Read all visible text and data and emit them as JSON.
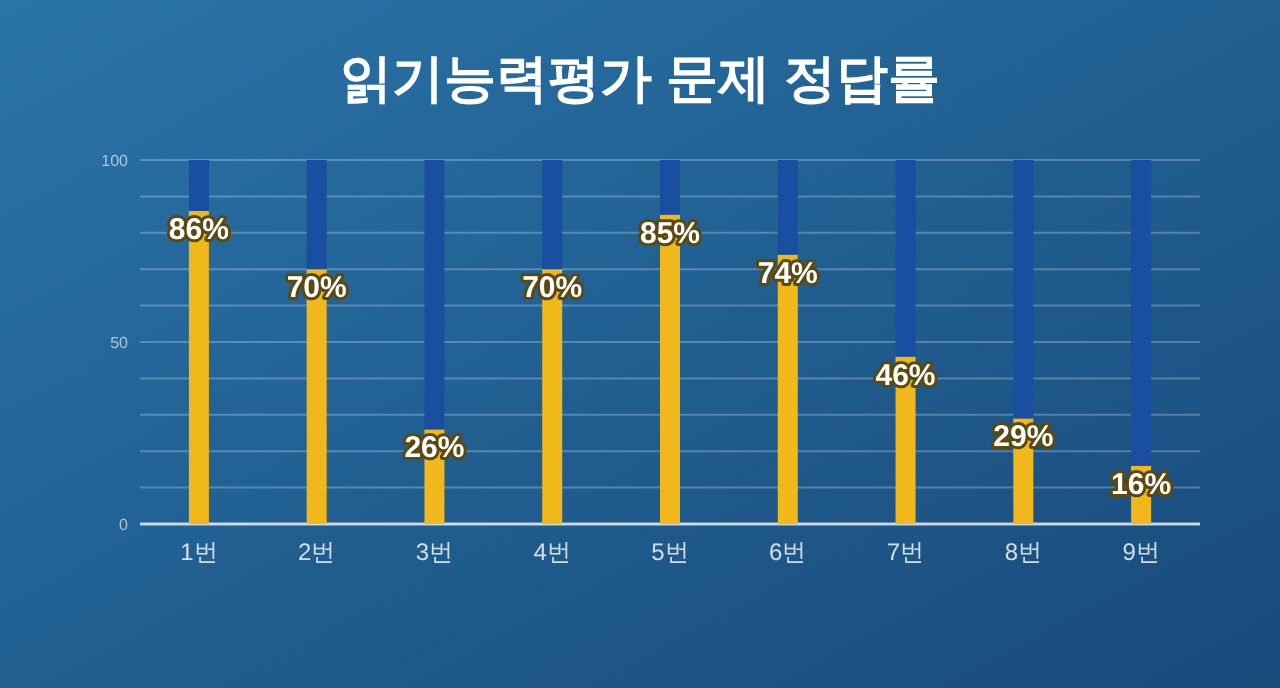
{
  "chart_data": {
    "type": "bar",
    "title": "읽기능력평가 문제 정답률",
    "categories": [
      "1번",
      "2번",
      "3번",
      "4번",
      "5번",
      "6번",
      "7번",
      "8번",
      "9번"
    ],
    "series": [
      {
        "color": "#f0b81a",
        "values": [
          86,
          70,
          26,
          70,
          85,
          74,
          46,
          29,
          16
        ],
        "value_labels": [
          "86%",
          "70%",
          "26%",
          "70%",
          "85%",
          "74%",
          "46%",
          "29%",
          "16%"
        ]
      },
      {
        "color": "#1a4ea0",
        "values": [
          14,
          30,
          74,
          30,
          15,
          26,
          54,
          71,
          84
        ]
      }
    ],
    "stacked": true,
    "ylim": [
      0,
      100
    ],
    "yticks": [
      0,
      {
        "value": 10,
        "label": null
      },
      {
        "value": 20,
        "label": null
      },
      {
        "value": 30,
        "label": null
      },
      {
        "value": 40,
        "label": null
      },
      50,
      {
        "value": 60,
        "label": null
      },
      {
        "value": 70,
        "label": null
      },
      {
        "value": 80,
        "label": null
      },
      {
        "value": 90,
        "label": null
      },
      100
    ],
    "grid": "y"
  }
}
